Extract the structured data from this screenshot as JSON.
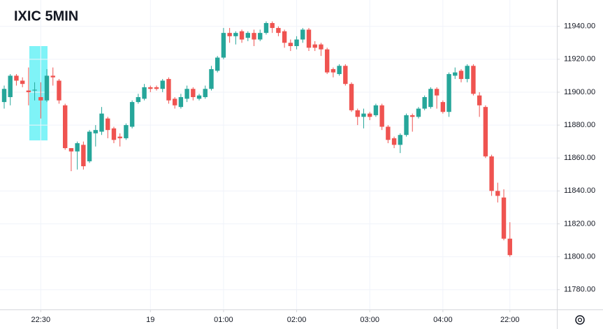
{
  "chart_data": {
    "type": "candlestick",
    "title": "IXIC 5MIN",
    "categories": [
      null,
      null,
      null,
      null,
      null,
      null,
      "22:30",
      null,
      null,
      null,
      null,
      null,
      null,
      null,
      null,
      null,
      null,
      null,
      null,
      null,
      null,
      null,
      null,
      null,
      "19",
      null,
      null,
      null,
      null,
      null,
      null,
      null,
      null,
      null,
      null,
      null,
      "01:00",
      null,
      null,
      null,
      null,
      null,
      null,
      null,
      null,
      null,
      null,
      null,
      "02:00",
      null,
      null,
      null,
      null,
      null,
      null,
      null,
      null,
      null,
      null,
      null,
      "03:00",
      null,
      null,
      null,
      null,
      null,
      null,
      null,
      null,
      null,
      null,
      null,
      "04:00",
      null,
      null,
      null,
      null,
      null,
      null,
      null,
      null,
      null,
      null,
      "22:00"
    ],
    "open": [
      11894,
      11897,
      11910,
      11907,
      11901,
      11901,
      11897,
      11895,
      11910,
      11907,
      11892,
      11866,
      11864,
      11868,
      11858,
      11875,
      11876,
      11884,
      11878,
      11873,
      11872,
      11879,
      11894,
      11896,
      11903,
      11903,
      11902,
      11908,
      11896,
      11891,
      11896,
      11902,
      11896,
      11897,
      11902,
      11913,
      11921,
      11936,
      11934,
      11937,
      11933,
      11936,
      11932,
      11936,
      11942,
      11939,
      11937,
      11930,
      11928,
      11932,
      11938,
      11929,
      11929,
      11926,
      11914,
      11911,
      11916,
      11905,
      11889,
      11885,
      11887,
      11886,
      11892,
      11879,
      11872,
      11868,
      11874,
      11886,
      11885,
      11890,
      11891,
      11902,
      11894,
      11888,
      11910,
      11913,
      11908,
      11916,
      11898,
      11891,
      11861,
      11840,
      11836,
      11811
    ],
    "high": [
      11904,
      11911,
      11911,
      11909,
      11915,
      11906,
      11906,
      11914,
      11915,
      11908,
      11893,
      11866,
      11870,
      11870,
      11877,
      11880,
      11891,
      11885,
      11879,
      11875,
      11881,
      11895,
      11899,
      11905,
      11904,
      11904,
      11908,
      11909,
      11897,
      11899,
      11904,
      11903,
      11899,
      11904,
      11916,
      11922,
      11939,
      11939,
      11937,
      11938,
      11937,
      11938,
      11938,
      11943,
      11943,
      11940,
      11938,
      11932,
      11934,
      11939,
      11939,
      11931,
      11930,
      11927,
      11915,
      11917,
      11917,
      11906,
      11890,
      11890,
      11888,
      11893,
      11893,
      11880,
      11873,
      11875,
      11887,
      11887,
      11891,
      11898,
      11903,
      11903,
      11895,
      11912,
      11915,
      11914,
      11917,
      11917,
      11900,
      11892,
      11862,
      11845,
      11841,
      11821
    ],
    "low": [
      11890,
      11892,
      11904,
      11903,
      11892,
      11895,
      11884,
      11894,
      11904,
      11893,
      11865,
      11852,
      11853,
      11853,
      11857,
      11867,
      11874,
      11872,
      11869,
      11867,
      11871,
      11878,
      11893,
      11895,
      11900,
      11901,
      11900,
      11893,
      11890,
      11890,
      11894,
      11895,
      11895,
      11896,
      11901,
      11912,
      11920,
      11930,
      11929,
      11930,
      11931,
      11928,
      11931,
      11935,
      11936,
      11934,
      11927,
      11925,
      11926,
      11930,
      11925,
      11925,
      11922,
      11911,
      11909,
      11910,
      11904,
      11888,
      11880,
      11878,
      11883,
      11885,
      11877,
      11869,
      11866,
      11863,
      11873,
      11876,
      11884,
      11889,
      11890,
      11890,
      11887,
      11885,
      11908,
      11906,
      11906,
      11898,
      11885,
      11860,
      11837,
      11833,
      11810,
      11800
    ],
    "close": [
      11902,
      11910,
      11907,
      11905,
      11900,
      11901.5,
      11895,
      11910,
      11909,
      11895,
      11866,
      11864,
      11869,
      11855,
      11876,
      11877,
      11887,
      11877,
      11871,
      11872,
      11880,
      11894,
      11897,
      11903,
      11902,
      11902,
      11907,
      11895,
      11892,
      11897,
      11902,
      11897,
      11898,
      11902,
      11914,
      11921,
      11936,
      11934,
      11936,
      11932,
      11936,
      11932,
      11936,
      11942,
      11939,
      11936,
      11930,
      11928,
      11932,
      11938,
      11927,
      11927,
      11926,
      11912,
      11912,
      11916,
      11905,
      11889,
      11885,
      11887,
      11885,
      11892,
      11879,
      11871,
      11868,
      11874,
      11886,
      11885,
      11890,
      11897,
      11902,
      11898,
      11888,
      11911,
      11912,
      11908,
      11916,
      11899,
      11892,
      11861,
      11840,
      11837,
      11811,
      11801
    ],
    "up_color": "#26a69a",
    "down_color": "#ef5350",
    "ylim": [
      11768,
      11956
    ],
    "yticks": [
      {
        "value": 11780,
        "label": "11780.00"
      },
      {
        "value": 11800,
        "label": "11800.00"
      },
      {
        "value": 11820,
        "label": "11820.00"
      },
      {
        "value": 11840,
        "label": "11840.00"
      },
      {
        "value": 11860,
        "label": "11860.00"
      },
      {
        "value": 11880,
        "label": "11880.00"
      },
      {
        "value": 11900,
        "label": "11900.00"
      },
      {
        "value": 11920,
        "label": "11920.00"
      },
      {
        "value": 11940,
        "label": "11940.00"
      }
    ],
    "grid": true
  }
}
